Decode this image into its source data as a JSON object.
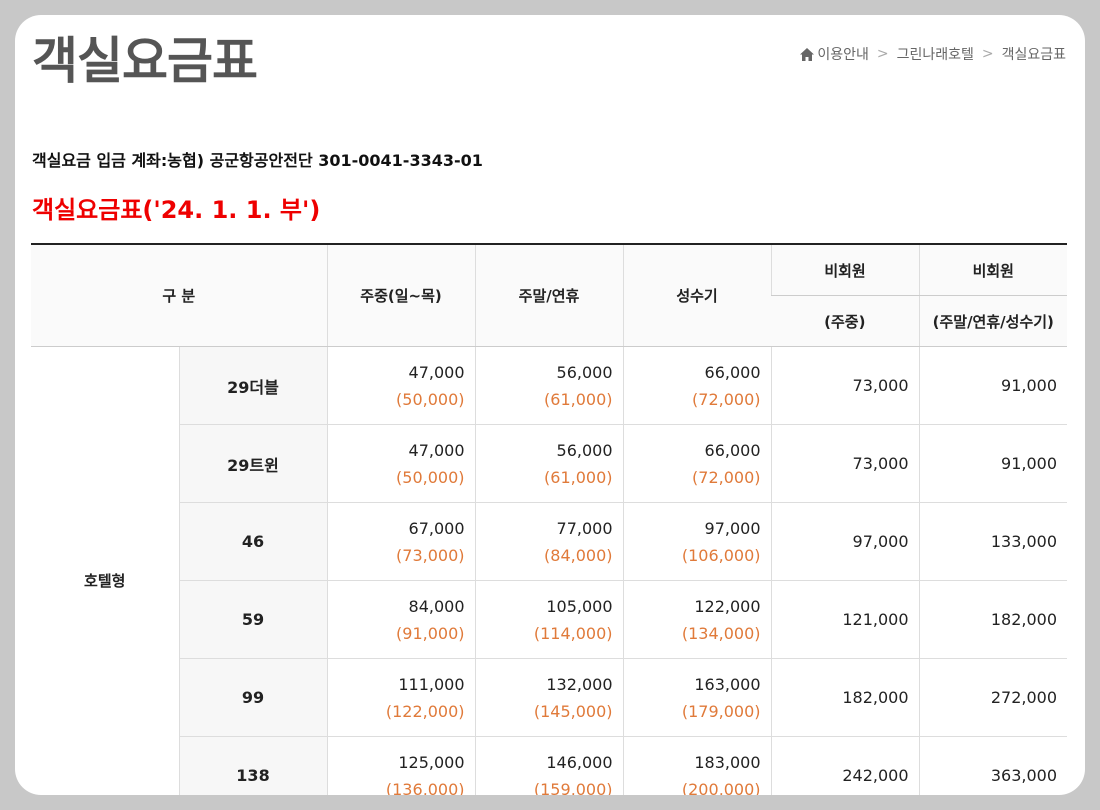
{
  "page": {
    "title": "객실요금표"
  },
  "breadcrumb": {
    "icon": "home-icon",
    "items": [
      "이용안내",
      "그린나래호텔",
      "객실요금표"
    ],
    "separator": ">"
  },
  "account_info": "객실요금 입금 계좌:농협) 공군항공안전단 301-0041-3343-01",
  "rate_heading": "객실요금표('24. 1. 1. 부')",
  "table": {
    "headers": {
      "category": "구 분",
      "weekday": "주중(일~목)",
      "weekend": "주말/연휴",
      "peak": "성수기",
      "nonmember": "비회원",
      "nonmember2": "비회원",
      "nonmember_weekday": "(주중)",
      "nonmember_weekend_peak": "(주말/연휴/성수기)"
    },
    "category": "호텔형",
    "rows": [
      {
        "room": "29더블",
        "weekday": "47,000",
        "weekday_alt": "(50,000)",
        "weekend": "56,000",
        "weekend_alt": "(61,000)",
        "peak": "66,000",
        "peak_alt": "(72,000)",
        "nm_weekday": "73,000",
        "nm_weekend": "91,000"
      },
      {
        "room": "29트윈",
        "weekday": "47,000",
        "weekday_alt": "(50,000)",
        "weekend": "56,000",
        "weekend_alt": "(61,000)",
        "peak": "66,000",
        "peak_alt": "(72,000)",
        "nm_weekday": "73,000",
        "nm_weekend": "91,000"
      },
      {
        "room": "46",
        "weekday": "67,000",
        "weekday_alt": "(73,000)",
        "weekend": "77,000",
        "weekend_alt": "(84,000)",
        "peak": "97,000",
        "peak_alt": "(106,000)",
        "nm_weekday": "97,000",
        "nm_weekend": "133,000"
      },
      {
        "room": "59",
        "weekday": "84,000",
        "weekday_alt": "(91,000)",
        "weekend": "105,000",
        "weekend_alt": "(114,000)",
        "peak": "122,000",
        "peak_alt": "(134,000)",
        "nm_weekday": "121,000",
        "nm_weekend": "182,000"
      },
      {
        "room": "99",
        "weekday": "111,000",
        "weekday_alt": "(122,000)",
        "weekend": "132,000",
        "weekend_alt": "(145,000)",
        "peak": "163,000",
        "peak_alt": "(179,000)",
        "nm_weekday": "182,000",
        "nm_weekend": "272,000"
      },
      {
        "room": "138",
        "weekday": "125,000",
        "weekday_alt": "(136,000)",
        "weekend": "146,000",
        "weekend_alt": "(159,000)",
        "peak": "183,000",
        "peak_alt": "(200,000)",
        "nm_weekday": "242,000",
        "nm_weekend": "363,000"
      }
    ]
  },
  "colors": {
    "heading_red": "#ee0000",
    "discount_orange": "#e07a3a",
    "title_gray": "#555555"
  }
}
